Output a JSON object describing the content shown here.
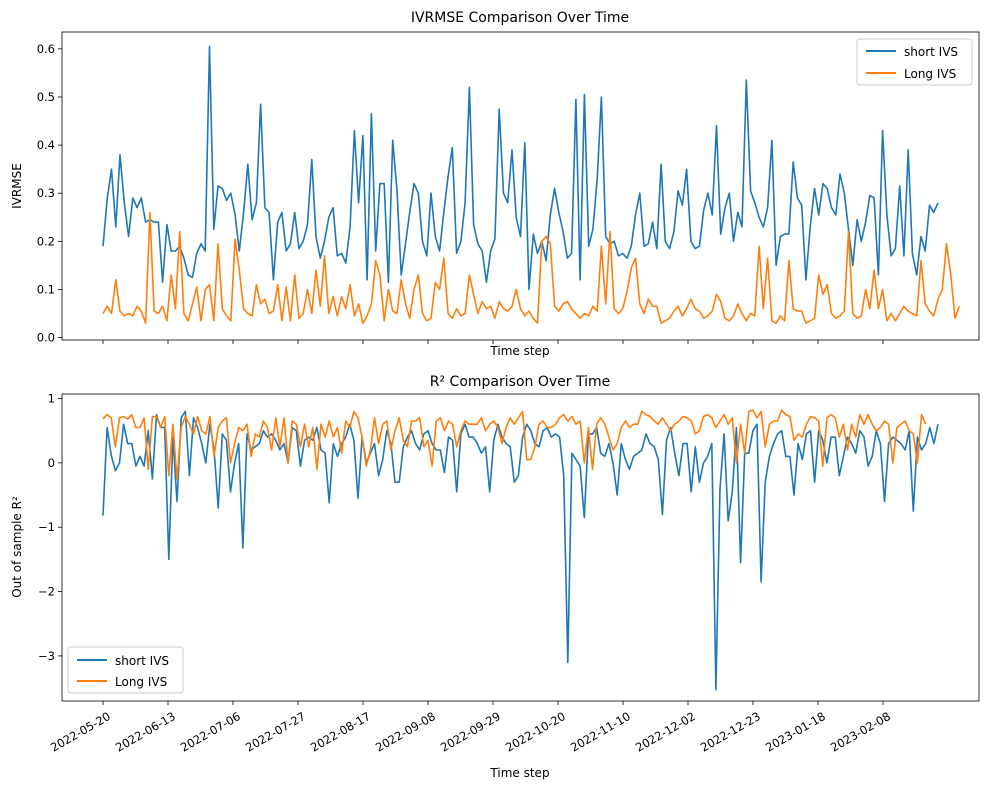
{
  "chart_data": [
    {
      "type": "line",
      "title": "IVRMSE Comparison Over Time",
      "xlabel": "Time step",
      "ylabel": "IVRMSE",
      "ylim": [
        -0.005,
        0.635
      ],
      "yticks": [
        "0.0",
        "0.1",
        "0.2",
        "0.3",
        "0.4",
        "0.5",
        "0.6"
      ],
      "legend_position": "top-right",
      "x_tick_labels_visible": false,
      "series": [
        {
          "name": "short IVS",
          "color": "#1f77b4",
          "values": [
            0.19,
            0.29,
            0.35,
            0.23,
            0.38,
            0.28,
            0.21,
            0.29,
            0.27,
            0.29,
            0.24,
            0.245,
            0.24,
            0.24,
            0.115,
            0.235,
            0.18,
            0.18,
            0.19,
            0.165,
            0.13,
            0.125,
            0.175,
            0.195,
            0.18,
            0.605,
            0.225,
            0.315,
            0.31,
            0.285,
            0.3,
            0.255,
            0.18,
            0.26,
            0.36,
            0.245,
            0.28,
            0.485,
            0.27,
            0.26,
            0.12,
            0.24,
            0.26,
            0.18,
            0.195,
            0.26,
            0.185,
            0.2,
            0.235,
            0.37,
            0.21,
            0.165,
            0.2,
            0.25,
            0.27,
            0.17,
            0.175,
            0.155,
            0.23,
            0.43,
            0.28,
            0.42,
            0.12,
            0.465,
            0.18,
            0.32,
            0.32,
            0.115,
            0.41,
            0.305,
            0.13,
            0.195,
            0.26,
            0.32,
            0.3,
            0.2,
            0.17,
            0.3,
            0.21,
            0.18,
            0.26,
            0.335,
            0.395,
            0.175,
            0.2,
            0.28,
            0.52,
            0.235,
            0.195,
            0.18,
            0.115,
            0.18,
            0.205,
            0.475,
            0.3,
            0.28,
            0.39,
            0.25,
            0.21,
            0.405,
            0.1,
            0.215,
            0.175,
            0.2,
            0.16,
            0.255,
            0.31,
            0.26,
            0.22,
            0.165,
            0.175,
            0.495,
            0.12,
            0.505,
            0.19,
            0.225,
            0.33,
            0.5,
            0.21,
            0.195,
            0.2,
            0.17,
            0.175,
            0.165,
            0.19,
            0.255,
            0.3,
            0.19,
            0.195,
            0.24,
            0.185,
            0.36,
            0.2,
            0.185,
            0.22,
            0.305,
            0.275,
            0.35,
            0.2,
            0.185,
            0.19,
            0.265,
            0.3,
            0.255,
            0.44,
            0.215,
            0.27,
            0.3,
            0.2,
            0.26,
            0.23,
            0.535,
            0.305,
            0.28,
            0.25,
            0.23,
            0.27,
            0.41,
            0.15,
            0.21,
            0.215,
            0.215,
            0.365,
            0.29,
            0.275,
            0.12,
            0.23,
            0.31,
            0.255,
            0.32,
            0.31,
            0.27,
            0.255,
            0.34,
            0.3,
            0.225,
            0.15,
            0.245,
            0.2,
            0.24,
            0.295,
            0.29,
            0.13,
            0.43,
            0.255,
            0.17,
            0.185,
            0.315,
            0.17,
            0.39,
            0.175,
            0.13,
            0.21,
            0.18,
            0.275,
            0.26,
            0.28
          ]
        },
        {
          "name": "Long IVS",
          "color": "#ff7f0e",
          "values": [
            0.05,
            0.065,
            0.05,
            0.12,
            0.055,
            0.045,
            0.05,
            0.045,
            0.065,
            0.055,
            0.03,
            0.26,
            0.055,
            0.05,
            0.065,
            0.035,
            0.13,
            0.06,
            0.22,
            0.05,
            0.035,
            0.07,
            0.105,
            0.035,
            0.1,
            0.11,
            0.035,
            0.195,
            0.06,
            0.045,
            0.035,
            0.205,
            0.14,
            0.06,
            0.05,
            0.045,
            0.11,
            0.07,
            0.08,
            0.05,
            0.055,
            0.11,
            0.035,
            0.105,
            0.035,
            0.13,
            0.04,
            0.05,
            0.1,
            0.05,
            0.14,
            0.065,
            0.17,
            0.05,
            0.085,
            0.045,
            0.085,
            0.06,
            0.11,
            0.045,
            0.07,
            0.03,
            0.045,
            0.07,
            0.16,
            0.13,
            0.035,
            0.1,
            0.055,
            0.05,
            0.12,
            0.07,
            0.04,
            0.1,
            0.13,
            0.05,
            0.035,
            0.04,
            0.115,
            0.1,
            0.165,
            0.05,
            0.04,
            0.06,
            0.045,
            0.05,
            0.13,
            0.09,
            0.05,
            0.075,
            0.06,
            0.065,
            0.04,
            0.075,
            0.06,
            0.055,
            0.065,
            0.1,
            0.06,
            0.045,
            0.055,
            0.04,
            0.03,
            0.2,
            0.21,
            0.195,
            0.065,
            0.055,
            0.07,
            0.075,
            0.06,
            0.05,
            0.04,
            0.05,
            0.045,
            0.065,
            0.055,
            0.19,
            0.07,
            0.22,
            0.06,
            0.05,
            0.06,
            0.095,
            0.145,
            0.165,
            0.07,
            0.05,
            0.08,
            0.065,
            0.065,
            0.03,
            0.035,
            0.04,
            0.055,
            0.065,
            0.045,
            0.06,
            0.08,
            0.06,
            0.055,
            0.04,
            0.045,
            0.055,
            0.09,
            0.075,
            0.04,
            0.035,
            0.045,
            0.07,
            0.05,
            0.035,
            0.05,
            0.045,
            0.19,
            0.06,
            0.165,
            0.035,
            0.03,
            0.045,
            0.035,
            0.16,
            0.06,
            0.055,
            0.055,
            0.03,
            0.035,
            0.04,
            0.13,
            0.09,
            0.11,
            0.05,
            0.04,
            0.045,
            0.055,
            0.22,
            0.05,
            0.04,
            0.045,
            0.1,
            0.06,
            0.14,
            0.06,
            0.1,
            0.035,
            0.05,
            0.035,
            0.05,
            0.065,
            0.055,
            0.05,
            0.045,
            0.16,
            0.07,
            0.055,
            0.045,
            0.08,
            0.1,
            0.195,
            0.13,
            0.04,
            0.065
          ]
        }
      ]
    },
    {
      "type": "line",
      "title": "R² Comparison Over Time",
      "xlabel": "Time step",
      "ylabel": "Out of sample R²",
      "ylim": [
        -3.7,
        1.07
      ],
      "yticks": [
        "−3",
        "−2",
        "−1",
        "0",
        "1"
      ],
      "x_tick_labels": [
        "2022-05-20",
        "2022-06-13",
        "2022-07-06",
        "2022-07-27",
        "2022-08-17",
        "2022-09-08",
        "2022-09-29",
        "2022-10-20",
        "2022-11-10",
        "2022-12-02",
        "2022-12-23",
        "2023-01-18",
        "2023-02-08"
      ],
      "legend_position": "bottom-left",
      "series": [
        {
          "name": "short IVS",
          "color": "#1f77b4",
          "values": [
            -0.82,
            0.55,
            0.12,
            -0.12,
            0.0,
            0.6,
            0.3,
            0.3,
            -0.05,
            0.1,
            -0.05,
            0.5,
            -0.25,
            0.75,
            0.55,
            0.55,
            -1.5,
            0.4,
            -0.6,
            0.7,
            0.8,
            -0.2,
            0.7,
            0.55,
            0.3,
            0.0,
            0.6,
            0.2,
            -0.7,
            0.45,
            0.35,
            -0.45,
            0.0,
            0.3,
            -1.32,
            0.45,
            0.2,
            0.25,
            0.3,
            0.5,
            0.4,
            0.45,
            0.35,
            0.2,
            0.3,
            0.0,
            0.55,
            0.5,
            -0.05,
            0.35,
            0.4,
            0.35,
            0.55,
            0.2,
            0.15,
            -0.62,
            0.3,
            0.1,
            0.3,
            0.4,
            0.6,
            0.35,
            -0.55,
            0.4,
            0.0,
            0.15,
            0.3,
            -0.2,
            0.05,
            0.5,
            0.3,
            -0.3,
            -0.3,
            0.25,
            0.4,
            0.5,
            0.3,
            0.2,
            0.45,
            0.5,
            0.3,
            0.2,
            0.2,
            -0.15,
            0.4,
            0.35,
            -0.45,
            0.45,
            0.6,
            0.4,
            0.4,
            0.3,
            0.15,
            0.25,
            -0.45,
            0.35,
            0.6,
            0.4,
            0.3,
            0.25,
            -0.3,
            -0.2,
            0.4,
            0.6,
            0.5,
            0.3,
            0.25,
            0.5,
            0.55,
            0.4,
            0.45,
            0.4,
            -0.2,
            -3.1,
            0.15,
            0.05,
            -0.05,
            -0.85,
            0.45,
            0.45,
            0.55,
            0.15,
            0.1,
            0.3,
            0.0,
            -0.5,
            0.3,
            0.05,
            -0.1,
            0.1,
            0.15,
            0.2,
            0.45,
            0.3,
            0.25,
            0.05,
            -0.8,
            0.35,
            0.55,
            0.15,
            -0.2,
            0.3,
            0.3,
            -0.45,
            0.25,
            -0.3,
            0.0,
            0.1,
            0.3,
            -3.52,
            -0.4,
            0.45,
            -0.9,
            -0.45,
            0.55,
            -1.55,
            0.15,
            0.15,
            0.5,
            0.6,
            -1.85,
            -0.3,
            0.1,
            0.3,
            0.45,
            0.5,
            0.1,
            0.1,
            -0.5,
            0.3,
            0.05,
            0.45,
            0.5,
            -0.3,
            0.5,
            0.35,
            0.0,
            0.4,
            0.4,
            -0.2,
            0.1,
            0.4,
            0.3,
            0.15,
            0.5,
            0.4,
            -0.05,
            0.1,
            0.5,
            0.3,
            -0.6,
            0.3,
            0.4,
            0.35,
            0.3,
            0.2,
            0.5,
            -0.75,
            0.4,
            0.2,
            0.3,
            0.55,
            0.3,
            0.6
          ]
        },
        {
          "name": "Long IVS",
          "color": "#ff7f0e",
          "values": [
            0.68,
            0.75,
            0.7,
            0.25,
            0.7,
            0.72,
            0.68,
            0.75,
            0.55,
            0.55,
            0.7,
            -0.1,
            0.72,
            0.72,
            0.55,
            0.72,
            -0.2,
            0.6,
            -0.25,
            0.55,
            0.72,
            0.6,
            0.45,
            0.72,
            0.5,
            0.45,
            0.72,
            0.1,
            0.55,
            0.65,
            0.7,
            0.0,
            0.3,
            0.55,
            0.5,
            0.6,
            0.1,
            0.45,
            0.4,
            0.65,
            0.55,
            0.2,
            0.7,
            0.25,
            0.7,
            0.0,
            0.65,
            0.6,
            0.25,
            0.6,
            0.25,
            0.55,
            -0.1,
            0.6,
            0.4,
            0.65,
            0.4,
            0.55,
            0.15,
            0.65,
            0.55,
            0.8,
            0.7,
            0.4,
            -0.05,
            0.2,
            0.7,
            0.3,
            0.6,
            0.65,
            0.2,
            0.5,
            0.7,
            0.35,
            0.25,
            0.65,
            0.65,
            0.7,
            0.25,
            0.35,
            -0.05,
            0.65,
            0.7,
            0.5,
            0.65,
            0.6,
            0.25,
            0.5,
            0.65,
            0.6,
            0.6,
            0.6,
            0.7,
            0.5,
            0.6,
            0.65,
            0.55,
            0.3,
            0.55,
            0.7,
            0.6,
            0.7,
            0.8,
            0.05,
            0.05,
            0.25,
            0.6,
            0.65,
            0.55,
            0.55,
            0.6,
            0.7,
            0.75,
            0.65,
            0.72,
            0.6,
            0.65,
            0.0,
            0.55,
            -0.1,
            0.6,
            0.7,
            0.6,
            0.4,
            0.2,
            0.3,
            0.55,
            0.65,
            0.55,
            0.6,
            0.6,
            0.8,
            0.75,
            0.72,
            0.65,
            0.6,
            0.7,
            0.6,
            0.5,
            0.6,
            0.65,
            0.72,
            0.7,
            0.65,
            0.45,
            0.5,
            0.72,
            0.75,
            0.7,
            0.55,
            0.65,
            0.75,
            0.6,
            0.7,
            0.0,
            0.6,
            0.15,
            0.8,
            0.82,
            0.7,
            0.8,
            0.25,
            0.6,
            0.65,
            0.65,
            0.82,
            0.75,
            0.72,
            0.35,
            0.45,
            0.4,
            0.6,
            0.72,
            0.7,
            0.65,
            -0.05,
            0.7,
            0.75,
            0.7,
            0.4,
            0.6,
            0.2,
            0.6,
            0.4,
            0.75,
            0.6,
            0.75,
            0.6,
            0.5,
            0.55,
            0.65,
            0.6,
            0.0,
            0.55,
            0.6,
            0.65,
            0.5,
            0.45,
            0.0,
            0.75,
            0.6
          ]
        }
      ]
    }
  ]
}
